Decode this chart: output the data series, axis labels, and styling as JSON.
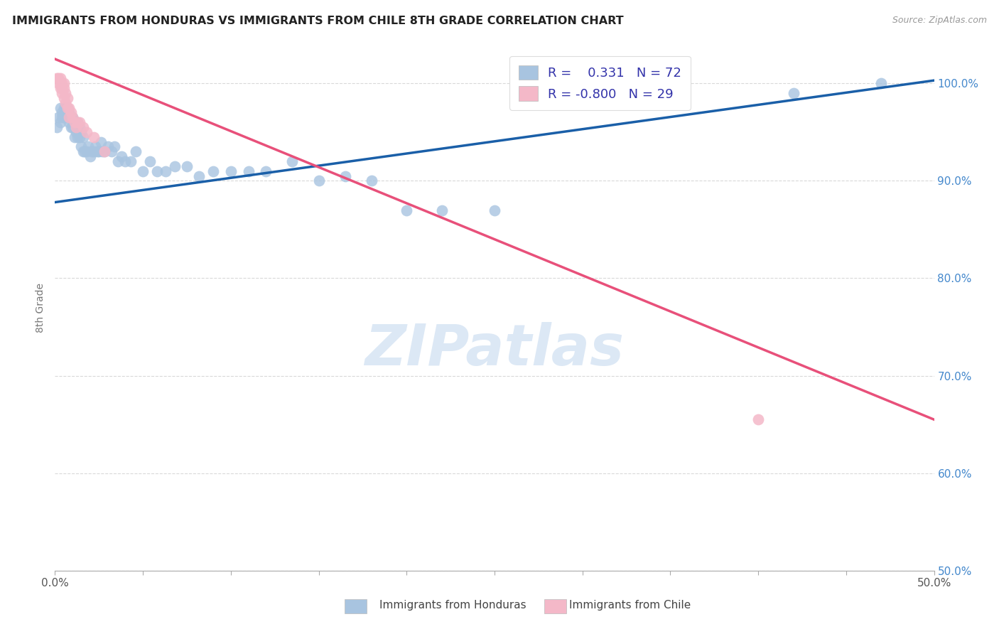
{
  "title": "IMMIGRANTS FROM HONDURAS VS IMMIGRANTS FROM CHILE 8TH GRADE CORRELATION CHART",
  "source": "Source: ZipAtlas.com",
  "ylabel": "8th Grade",
  "xlim": [
    0.0,
    0.5
  ],
  "ylim": [
    0.5,
    1.04
  ],
  "x_tick_vals": [
    0.0,
    0.05,
    0.1,
    0.15,
    0.2,
    0.25,
    0.3,
    0.35,
    0.4,
    0.45,
    0.5
  ],
  "x_tick_labels_show": {
    "0.0": "0.0%",
    "0.5": "50.0%"
  },
  "y_tick_vals": [
    0.5,
    0.6,
    0.7,
    0.8,
    0.9,
    1.0
  ],
  "y_tick_labels": [
    "50.0%",
    "60.0%",
    "70.0%",
    "80.0%",
    "90.0%",
    "100.0%"
  ],
  "legend_R_blue": "0.331",
  "legend_N_blue": "72",
  "legend_R_pink": "-0.800",
  "legend_N_pink": "29",
  "blue_color": "#a8c4e0",
  "pink_color": "#f4b8c8",
  "blue_line_color": "#1a5fa8",
  "pink_line_color": "#e8507a",
  "watermark": "ZIPatlas",
  "watermark_color": "#dce8f5",
  "background_color": "#ffffff",
  "grid_color": "#d0d0d0",
  "blue_line_x": [
    0.0,
    0.5
  ],
  "blue_line_y": [
    0.878,
    1.003
  ],
  "pink_line_x": [
    0.0,
    0.5
  ],
  "pink_line_y": [
    1.025,
    0.655
  ],
  "blue_scatter_x": [
    0.001,
    0.002,
    0.003,
    0.003,
    0.004,
    0.004,
    0.005,
    0.005,
    0.005,
    0.006,
    0.006,
    0.007,
    0.007,
    0.007,
    0.008,
    0.008,
    0.009,
    0.009,
    0.01,
    0.01,
    0.011,
    0.011,
    0.012,
    0.012,
    0.013,
    0.013,
    0.014,
    0.014,
    0.015,
    0.015,
    0.016,
    0.016,
    0.017,
    0.018,
    0.019,
    0.02,
    0.021,
    0.022,
    0.023,
    0.024,
    0.025,
    0.026,
    0.027,
    0.028,
    0.03,
    0.032,
    0.034,
    0.036,
    0.038,
    0.04,
    0.043,
    0.046,
    0.05,
    0.054,
    0.058,
    0.063,
    0.068,
    0.075,
    0.082,
    0.09,
    0.1,
    0.11,
    0.12,
    0.135,
    0.15,
    0.165,
    0.18,
    0.2,
    0.22,
    0.25,
    0.42,
    0.47
  ],
  "blue_scatter_y": [
    0.955,
    0.965,
    0.96,
    0.975,
    0.965,
    0.97,
    0.97,
    0.965,
    0.975,
    0.965,
    0.975,
    0.97,
    0.965,
    0.975,
    0.96,
    0.97,
    0.955,
    0.965,
    0.955,
    0.965,
    0.945,
    0.96,
    0.95,
    0.96,
    0.945,
    0.96,
    0.945,
    0.955,
    0.935,
    0.95,
    0.93,
    0.945,
    0.93,
    0.93,
    0.935,
    0.925,
    0.93,
    0.93,
    0.935,
    0.93,
    0.93,
    0.94,
    0.93,
    0.93,
    0.935,
    0.93,
    0.935,
    0.92,
    0.925,
    0.92,
    0.92,
    0.93,
    0.91,
    0.92,
    0.91,
    0.91,
    0.915,
    0.915,
    0.905,
    0.91,
    0.91,
    0.91,
    0.91,
    0.92,
    0.9,
    0.905,
    0.9,
    0.87,
    0.87,
    0.87,
    0.99,
    1.0
  ],
  "pink_scatter_x": [
    0.001,
    0.002,
    0.002,
    0.003,
    0.003,
    0.003,
    0.004,
    0.004,
    0.004,
    0.005,
    0.005,
    0.005,
    0.006,
    0.006,
    0.007,
    0.007,
    0.008,
    0.008,
    0.009,
    0.01,
    0.011,
    0.012,
    0.013,
    0.014,
    0.016,
    0.018,
    0.022,
    0.028,
    0.4
  ],
  "pink_scatter_y": [
    1.005,
    1.005,
    1.0,
    1.005,
    1.0,
    0.995,
    1.0,
    0.995,
    0.99,
    1.0,
    0.995,
    0.985,
    0.99,
    0.98,
    0.975,
    0.985,
    0.975,
    0.965,
    0.97,
    0.965,
    0.96,
    0.955,
    0.96,
    0.96,
    0.955,
    0.95,
    0.945,
    0.93,
    0.655
  ]
}
